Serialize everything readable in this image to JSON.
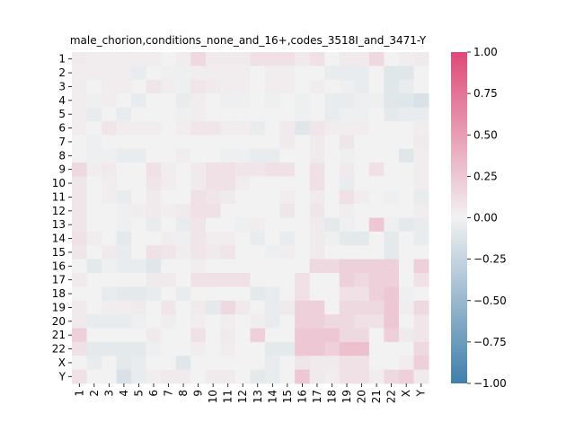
{
  "chart_data": {
    "type": "heatmap",
    "title": "male_chorion,conditions_none_and_16+,codes_3518I_and_3471-Y",
    "xlabel": "",
    "ylabel": "",
    "labels": [
      "1",
      "2",
      "3",
      "4",
      "5",
      "6",
      "7",
      "8",
      "9",
      "10",
      "11",
      "12",
      "13",
      "14",
      "15",
      "16",
      "17",
      "18",
      "19",
      "20",
      "21",
      "22",
      "X",
      "Y"
    ],
    "colorbar": {
      "min": -1.0,
      "max": 1.0,
      "ticks": [
        -1.0,
        -0.75,
        -0.5,
        -0.25,
        0.0,
        0.25,
        0.5,
        0.75,
        1.0
      ],
      "tick_labels": [
        "−1.00",
        "−0.75",
        "−0.50",
        "−0.25",
        "0.00",
        "0.25",
        "0.50",
        "0.75",
        "1.00"
      ],
      "neg_color": "#3f7fab",
      "mid_color": "#f2f2f2",
      "pos_color": "#de4a78"
    },
    "values": [
      [
        0.05,
        0.03,
        0.03,
        0.03,
        0.03,
        0.03,
        0.0,
        0.03,
        0.15,
        0.05,
        0.05,
        0.05,
        0.1,
        0.1,
        0.1,
        0.05,
        0.1,
        0.0,
        0.05,
        0.05,
        0.15,
        0.0,
        0.03,
        0.05
      ],
      [
        0.03,
        0.03,
        0.03,
        0.03,
        -0.05,
        0.0,
        -0.03,
        -0.03,
        0.03,
        0.03,
        0.03,
        0.03,
        0.0,
        0.03,
        0.03,
        0.0,
        0.0,
        -0.05,
        -0.05,
        -0.05,
        0.0,
        -0.1,
        -0.1,
        0.0
      ],
      [
        0.03,
        0.0,
        0.03,
        0.03,
        0.0,
        0.08,
        0.03,
        -0.03,
        0.08,
        0.05,
        0.03,
        0.03,
        0.0,
        0.03,
        0.03,
        0.0,
        0.03,
        0.0,
        -0.03,
        -0.05,
        0.0,
        -0.1,
        -0.05,
        0.0
      ],
      [
        0.03,
        -0.03,
        0.03,
        0.0,
        -0.05,
        0.0,
        0.0,
        -0.05,
        0.03,
        0.0,
        -0.03,
        -0.03,
        0.0,
        -0.03,
        0.0,
        -0.03,
        0.0,
        -0.05,
        -0.05,
        -0.03,
        -0.03,
        -0.1,
        -0.1,
        -0.15
      ],
      [
        0.03,
        -0.05,
        0.0,
        -0.05,
        0.0,
        0.0,
        0.0,
        -0.03,
        0.03,
        0.0,
        0.0,
        0.0,
        0.0,
        0.0,
        0.0,
        -0.03,
        0.0,
        -0.05,
        -0.03,
        -0.03,
        0.0,
        -0.08,
        -0.05,
        -0.05
      ],
      [
        0.03,
        0.0,
        0.08,
        0.03,
        0.03,
        0.03,
        0.0,
        0.03,
        0.08,
        0.08,
        0.03,
        0.03,
        -0.05,
        0.0,
        0.05,
        -0.1,
        0.08,
        0.03,
        0.03,
        0.03,
        0.0,
        0.0,
        0.0,
        0.03
      ],
      [
        0.0,
        -0.03,
        0.0,
        0.0,
        0.0,
        0.0,
        0.0,
        0.0,
        0.0,
        0.0,
        0.0,
        0.0,
        0.0,
        0.0,
        0.05,
        0.0,
        0.05,
        0.0,
        0.08,
        0.0,
        0.0,
        0.0,
        0.0,
        0.05
      ],
      [
        0.0,
        -0.03,
        -0.03,
        -0.05,
        -0.05,
        0.0,
        0.0,
        0.03,
        0.0,
        0.0,
        -0.03,
        -0.03,
        -0.05,
        -0.05,
        0.0,
        0.0,
        0.05,
        0.0,
        -0.03,
        0.0,
        0.0,
        0.0,
        -0.1,
        0.03
      ],
      [
        0.15,
        0.03,
        0.05,
        0.0,
        0.0,
        0.1,
        0.03,
        0.0,
        0.05,
        0.1,
        0.1,
        0.08,
        0.08,
        0.1,
        0.1,
        0.0,
        0.1,
        0.0,
        0.05,
        0.0,
        0.1,
        0.0,
        0.0,
        0.03
      ],
      [
        0.08,
        0.0,
        0.03,
        0.0,
        0.0,
        0.08,
        0.03,
        0.0,
        0.05,
        0.1,
        0.1,
        0.03,
        0.0,
        0.0,
        0.0,
        0.0,
        0.1,
        0.0,
        -0.05,
        0.0,
        0.0,
        0.0,
        0.0,
        0.03
      ],
      [
        0.08,
        0.0,
        0.03,
        -0.05,
        0.0,
        0.05,
        0.0,
        0.0,
        0.1,
        0.08,
        0.05,
        0.0,
        0.0,
        0.0,
        0.03,
        0.0,
        0.05,
        0.0,
        0.1,
        0.03,
        0.0,
        -0.03,
        0.0,
        -0.05
      ],
      [
        0.08,
        0.0,
        0.0,
        -0.03,
        0.03,
        0.05,
        0.03,
        0.05,
        0.1,
        0.1,
        0.0,
        0.0,
        0.0,
        0.0,
        0.08,
        0.0,
        0.08,
        0.0,
        0.03,
        0.0,
        0.0,
        0.0,
        0.0,
        0.03
      ],
      [
        0.08,
        0.0,
        0.0,
        -0.03,
        0.0,
        -0.05,
        0.0,
        -0.05,
        0.08,
        0.0,
        0.0,
        -0.03,
        0.03,
        0.0,
        0.0,
        0.0,
        0.05,
        -0.08,
        -0.03,
        0.0,
        0.25,
        -0.03,
        -0.08,
        -0.05
      ],
      [
        0.1,
        0.03,
        0.0,
        -0.08,
        0.0,
        0.0,
        0.03,
        -0.03,
        0.08,
        0.03,
        0.03,
        0.0,
        -0.05,
        0.0,
        -0.05,
        0.0,
        0.05,
        -0.03,
        -0.08,
        -0.08,
        0.0,
        -0.08,
        0.0,
        -0.05
      ],
      [
        0.08,
        0.0,
        0.05,
        -0.05,
        0.0,
        0.1,
        0.08,
        0.03,
        0.08,
        0.05,
        0.08,
        0.0,
        0.0,
        -0.03,
        0.03,
        0.0,
        0.05,
        0.0,
        0.0,
        0.0,
        0.0,
        -0.08,
        0.0,
        0.0
      ],
      [
        0.0,
        -0.08,
        -0.03,
        -0.05,
        -0.05,
        -0.1,
        0.0,
        0.0,
        0.03,
        0.0,
        0.0,
        0.0,
        0.0,
        0.0,
        0.0,
        0.0,
        0.15,
        0.15,
        0.2,
        0.2,
        0.2,
        0.2,
        0.0,
        0.2
      ],
      [
        0.05,
        0.0,
        0.0,
        0.0,
        0.0,
        0.05,
        0.05,
        0.0,
        0.1,
        0.1,
        0.1,
        0.1,
        0.0,
        0.0,
        0.0,
        0.1,
        0.0,
        0.0,
        0.2,
        0.15,
        0.2,
        0.2,
        0.0,
        0.1
      ],
      [
        0.0,
        0.0,
        -0.05,
        -0.08,
        -0.08,
        -0.05,
        0.0,
        -0.05,
        0.0,
        0.0,
        0.0,
        0.0,
        -0.08,
        -0.05,
        0.0,
        0.1,
        0.0,
        0.0,
        0.1,
        0.1,
        0.2,
        0.25,
        -0.03,
        0.0
      ],
      [
        0.05,
        0.0,
        0.03,
        0.03,
        0.05,
        0.0,
        0.08,
        0.0,
        0.05,
        -0.08,
        0.15,
        0.05,
        0.0,
        -0.05,
        0.05,
        0.2,
        0.2,
        0.0,
        0.15,
        0.15,
        0.15,
        0.25,
        0.03,
        0.15
      ],
      [
        0.05,
        -0.05,
        -0.05,
        -0.05,
        -0.03,
        0.0,
        0.03,
        0.0,
        0.03,
        0.0,
        0.03,
        0.0,
        0.03,
        -0.05,
        0.0,
        0.2,
        0.2,
        0.15,
        0.15,
        0.1,
        0.1,
        0.25,
        0.0,
        0.08
      ],
      [
        0.2,
        0.0,
        0.0,
        0.0,
        0.0,
        0.05,
        0.0,
        0.0,
        0.1,
        0.0,
        0.05,
        0.0,
        0.2,
        0.0,
        0.0,
        0.25,
        0.25,
        0.25,
        0.15,
        0.15,
        0.0,
        0.2,
        0.05,
        0.08
      ],
      [
        0.1,
        -0.08,
        -0.08,
        -0.08,
        -0.08,
        -0.03,
        0.0,
        0.0,
        0.03,
        0.0,
        0.03,
        0.0,
        0.0,
        -0.08,
        -0.08,
        0.25,
        0.25,
        0.2,
        0.3,
        0.3,
        0.0,
        0.0,
        0.0,
        0.15
      ],
      [
        0.0,
        -0.05,
        0.0,
        -0.08,
        -0.05,
        0.0,
        0.0,
        -0.1,
        0.0,
        0.0,
        0.0,
        0.0,
        0.0,
        -0.05,
        0.0,
        0.08,
        0.05,
        0.05,
        0.1,
        0.1,
        0.0,
        0.0,
        0.03,
        0.2
      ],
      [
        0.1,
        0.0,
        0.0,
        -0.15,
        -0.05,
        0.03,
        0.05,
        0.05,
        0.0,
        0.05,
        0.05,
        0.0,
        -0.08,
        -0.05,
        0.0,
        0.25,
        0.05,
        0.03,
        0.1,
        0.1,
        0.03,
        0.15,
        0.2,
        0.05
      ]
    ]
  }
}
